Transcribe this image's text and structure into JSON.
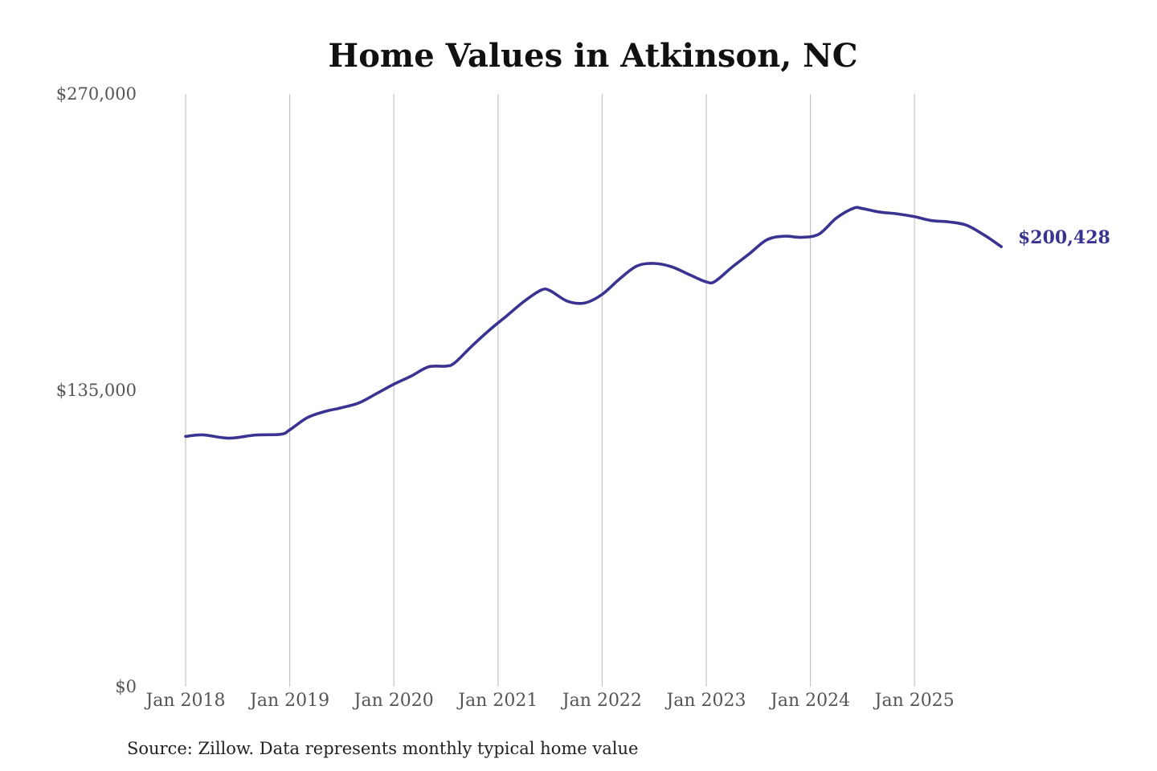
{
  "chart_data": {
    "type": "line",
    "title": "Home Values in Atkinson, NC",
    "xlabel": "",
    "ylabel": "",
    "ylim": [
      0,
      270000
    ],
    "yticks": [
      {
        "value": 0,
        "label": "$0"
      },
      {
        "value": 135000,
        "label": "$135,000"
      },
      {
        "value": 270000,
        "label": "$270,000"
      }
    ],
    "xticks": [
      {
        "value": "2018-01",
        "label": "Jan 2018"
      },
      {
        "value": "2019-01",
        "label": "Jan 2019"
      },
      {
        "value": "2020-01",
        "label": "Jan 2020"
      },
      {
        "value": "2021-01",
        "label": "Jan 2021"
      },
      {
        "value": "2022-01",
        "label": "Jan 2022"
      },
      {
        "value": "2023-01",
        "label": "Jan 2023"
      },
      {
        "value": "2024-01",
        "label": "Jan 2024"
      },
      {
        "value": "2025-01",
        "label": "Jan 2025"
      }
    ],
    "grid": "vertical",
    "series": [
      {
        "color": "#3a3391",
        "points": [
          [
            "2018-01",
            114000
          ],
          [
            "2018-03",
            114700
          ],
          [
            "2018-06",
            113200
          ],
          [
            "2018-09",
            114600
          ],
          [
            "2018-12",
            115000
          ],
          [
            "2019-01",
            117000
          ],
          [
            "2019-03",
            122500
          ],
          [
            "2019-05",
            125300
          ],
          [
            "2019-07",
            127100
          ],
          [
            "2019-09",
            129300
          ],
          [
            "2019-11",
            133500
          ],
          [
            "2020-01",
            137800
          ],
          [
            "2020-03",
            141500
          ],
          [
            "2020-05",
            145700
          ],
          [
            "2020-07",
            146000
          ],
          [
            "2020-08",
            147500
          ],
          [
            "2020-10",
            155200
          ],
          [
            "2020-12",
            162400
          ],
          [
            "2021-02",
            168900
          ],
          [
            "2021-04",
            175500
          ],
          [
            "2021-06",
            180700
          ],
          [
            "2021-07",
            180400
          ],
          [
            "2021-09",
            175600
          ],
          [
            "2021-11",
            174800
          ],
          [
            "2022-01",
            178700
          ],
          [
            "2022-03",
            185700
          ],
          [
            "2022-05",
            191600
          ],
          [
            "2022-07",
            192800
          ],
          [
            "2022-09",
            191300
          ],
          [
            "2022-11",
            187800
          ],
          [
            "2023-01",
            184400
          ],
          [
            "2023-02",
            184600
          ],
          [
            "2023-04",
            191200
          ],
          [
            "2023-06",
            197300
          ],
          [
            "2023-08",
            203600
          ],
          [
            "2023-10",
            205200
          ],
          [
            "2023-12",
            204700
          ],
          [
            "2024-02",
            206200
          ],
          [
            "2024-04",
            213500
          ],
          [
            "2024-06",
            218000
          ],
          [
            "2024-07",
            217800
          ],
          [
            "2024-09",
            216200
          ],
          [
            "2024-11",
            215400
          ],
          [
            "2025-01",
            214100
          ],
          [
            "2025-03",
            212300
          ],
          [
            "2025-05",
            211700
          ],
          [
            "2025-07",
            210200
          ],
          [
            "2025-09",
            205800
          ],
          [
            "2025-10",
            203200
          ],
          [
            "2025-11",
            200428
          ]
        ]
      }
    ],
    "end_label": "$200,428",
    "source": "Source: Zillow. Data represents monthly typical home value"
  }
}
